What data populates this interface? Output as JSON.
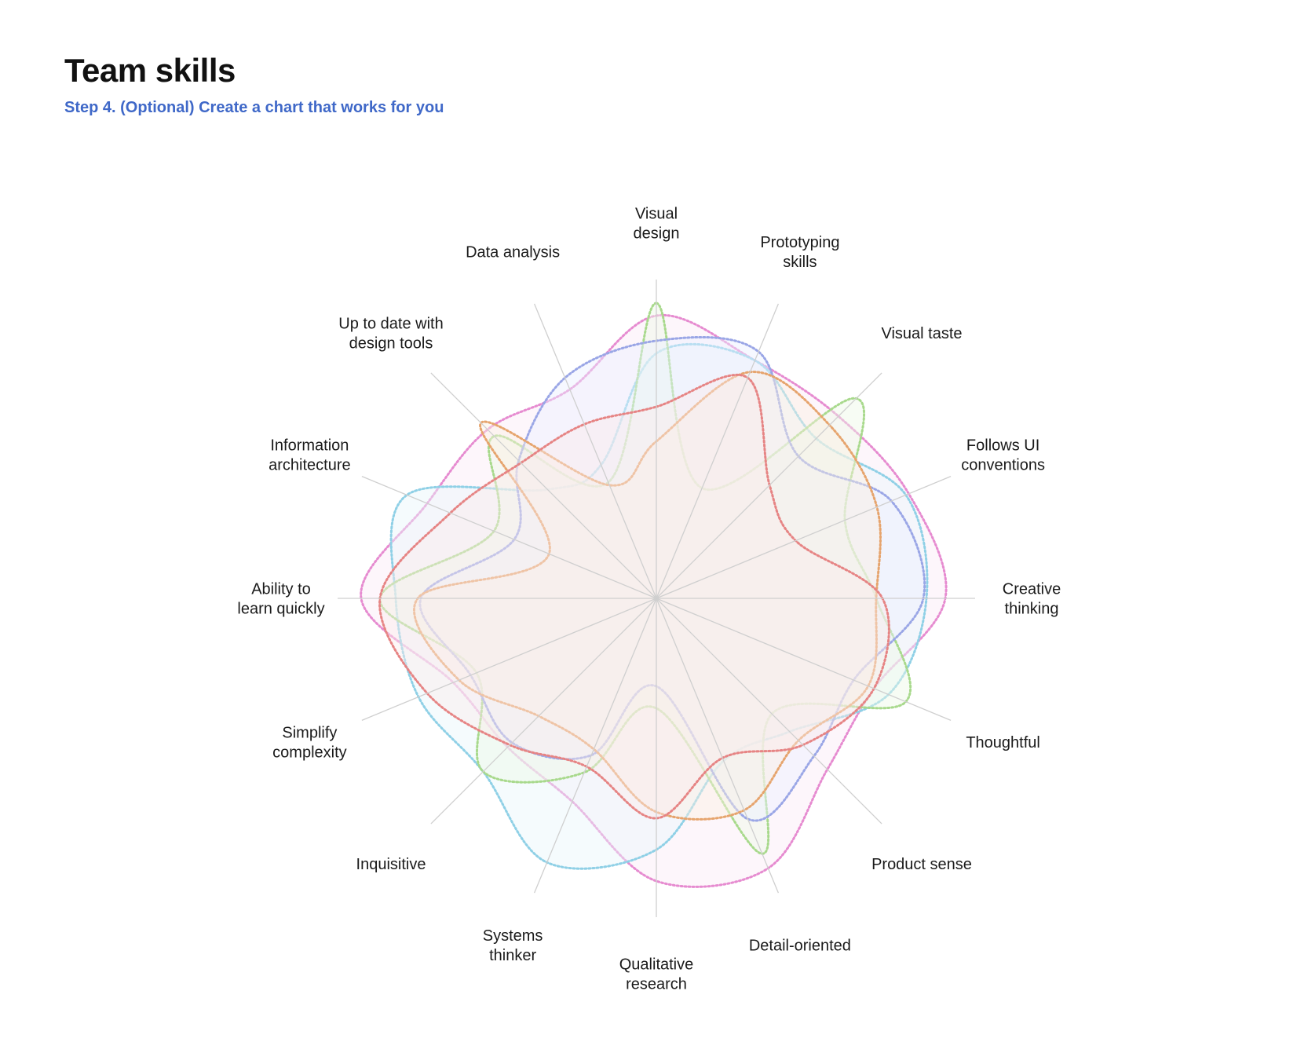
{
  "header": {
    "title": "Team skills",
    "subtitle": "Step 4. (Optional) Create a chart that works for you"
  },
  "chart_data": {
    "type": "radar",
    "title": "",
    "axes": [
      "Visual design",
      "Prototyping skills",
      "Visual taste",
      "Follows UI conventions",
      "Creative thinking",
      "Thoughtful",
      "Product sense",
      "Detail-oriented",
      "Qualitative research",
      "Systems thinker",
      "Inquisitive",
      "Simplify complexity",
      "Ability to learn quickly",
      "Information architecture",
      "Up to date with design tools",
      "Data analysis"
    ],
    "axis_label_lines": [
      [
        "Visual",
        "design"
      ],
      [
        "Prototyping",
        "skills"
      ],
      [
        "Visual taste"
      ],
      [
        "Follows UI",
        "conventions"
      ],
      [
        "Creative",
        "thinking"
      ],
      [
        "Thoughtful"
      ],
      [
        "Product sense"
      ],
      [
        "Detail-oriented"
      ],
      [
        "Qualitative",
        "research"
      ],
      [
        "Systems",
        "thinker"
      ],
      [
        "Inquisitive"
      ],
      [
        "Simplify",
        "complexity"
      ],
      [
        "Ability to",
        "learn quickly"
      ],
      [
        "Information",
        "architecture"
      ],
      [
        "Up to date with",
        "design tools"
      ],
      [
        "Data analysis"
      ]
    ],
    "max": 1.0,
    "grid": false,
    "legend": "none",
    "series": [
      {
        "color": "#e68bd0",
        "fill": "#fbeaf6",
        "values": [
          0.9,
          0.82,
          0.82,
          0.87,
          0.92,
          0.75,
          0.77,
          0.93,
          0.9,
          0.7,
          0.67,
          0.7,
          0.94,
          0.79,
          0.76,
          0.72
        ]
      },
      {
        "color": "#8fd0e6",
        "fill": "#e9f6fb",
        "values": [
          0.78,
          0.82,
          0.72,
          0.86,
          0.86,
          0.8,
          0.6,
          0.56,
          0.8,
          0.91,
          0.78,
          0.82,
          0.83,
          0.86,
          0.49,
          0.46
        ]
      },
      {
        "color": "#a8d98c",
        "fill": "#eef8e6",
        "values": [
          0.94,
          0.38,
          0.9,
          0.65,
          0.7,
          0.86,
          0.52,
          0.88,
          0.35,
          0.6,
          0.78,
          0.62,
          0.88,
          0.56,
          0.73,
          0.4
        ]
      },
      {
        "color": "#9aa6e6",
        "fill": "#ecefff",
        "values": [
          0.82,
          0.85,
          0.64,
          0.81,
          0.85,
          0.68,
          0.71,
          0.76,
          0.28,
          0.54,
          0.65,
          0.64,
          0.75,
          0.49,
          0.62,
          0.76
        ]
      },
      {
        "color": "#e6a46d",
        "fill": "#fbf0e3",
        "values": [
          0.5,
          0.78,
          0.78,
          0.76,
          0.7,
          0.73,
          0.64,
          0.73,
          0.68,
          0.52,
          0.53,
          0.68,
          0.76,
          0.37,
          0.79,
          0.39
        ]
      },
      {
        "color": "#e68484",
        "fill": "#fbeaea",
        "values": [
          0.61,
          0.76,
          0.51,
          0.48,
          0.72,
          0.75,
          0.66,
          0.55,
          0.7,
          0.58,
          0.66,
          0.79,
          0.88,
          0.71,
          0.61,
          0.6
        ]
      }
    ]
  }
}
